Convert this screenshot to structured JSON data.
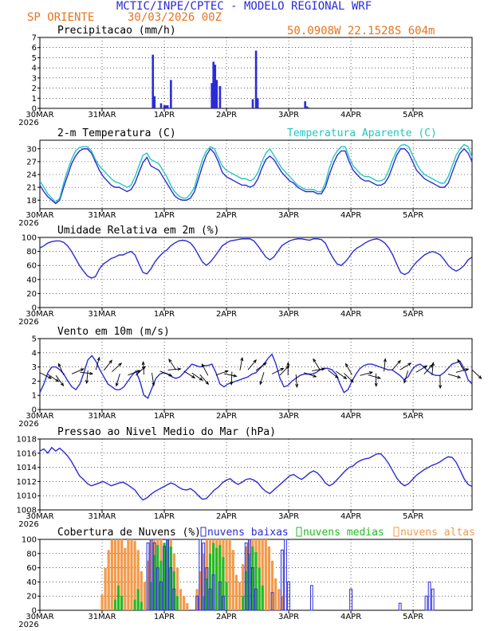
{
  "header": {
    "title": "MCTIC/INPE/CPTEC - MODELO REGIONAL WRF",
    "location": "SP ORIENTE",
    "run": "30/03/2026 00Z",
    "coords": "50.0908W 22.1528S 604m",
    "title_color": "#2b2bd6",
    "sub_color": "#e8741e"
  },
  "colors": {
    "blue": "#2b2bd6",
    "cyan": "#21c7c1",
    "green": "#22bb22",
    "orange": "#f39a4a",
    "black": "#000000"
  },
  "x_axis": {
    "labels": [
      "30MAR",
      "31MAR",
      "1APR",
      "2APR",
      "3APR",
      "4APR",
      "5APR"
    ],
    "year": "2026"
  },
  "chart_data": [
    {
      "type": "bar",
      "title": "Precipitacao (mm/h)",
      "ylim": [
        0,
        7
      ],
      "yticks": [
        0,
        1,
        2,
        3,
        4,
        5,
        6,
        7
      ],
      "bars": [
        [
          34.5,
          5.3
        ],
        [
          35,
          1.2
        ],
        [
          37,
          0.5
        ],
        [
          38,
          0.3
        ],
        [
          38.5,
          0.3
        ],
        [
          39,
          0.3
        ],
        [
          40,
          2.8
        ],
        [
          52.5,
          2.5
        ],
        [
          53,
          4.6
        ],
        [
          53.5,
          4.3
        ],
        [
          54,
          2.8
        ],
        [
          55,
          2.2
        ],
        [
          65,
          0.9
        ],
        [
          66,
          5.7
        ],
        [
          66.5,
          1.0
        ],
        [
          81,
          0.7
        ],
        [
          81.5,
          0.2
        ],
        [
          82,
          0.1
        ]
      ]
    },
    {
      "type": "line",
      "title": "2-m Temperatura (C)",
      "legend2": "Temperatura Aparente (C)",
      "ylim": [
        16,
        32
      ],
      "yticks": [
        18,
        21,
        24,
        27,
        30
      ],
      "series": [
        {
          "name": "Temperatura",
          "values": [
            21.5,
            20,
            18.8,
            18,
            17.2,
            18,
            21,
            23.8,
            26.5,
            28.3,
            29.5,
            30,
            30,
            29,
            27,
            25,
            23.5,
            22.5,
            21.5,
            21,
            21,
            20.5,
            20,
            20.5,
            22,
            24.5,
            26.8,
            28,
            26,
            25.5,
            25,
            23.5,
            22,
            20.5,
            19,
            18.3,
            18,
            18,
            18.5,
            20,
            23,
            26,
            28.5,
            30,
            29,
            27,
            24.5,
            23.5,
            23,
            22.5,
            22,
            21.5,
            21.5,
            21,
            21.5,
            23,
            25.5,
            27.5,
            28.3,
            27.5,
            26,
            24.5,
            23.5,
            22.5,
            22,
            21,
            20.5,
            20,
            20,
            20,
            19.5,
            19.5,
            21,
            24,
            26.5,
            28.5,
            29.5,
            29.5,
            27,
            25,
            24,
            23,
            22.5,
            22.5,
            22,
            21.5,
            21.5,
            22,
            23.5,
            26,
            28.5,
            30,
            30,
            29,
            27,
            25,
            24,
            23,
            22.5,
            22,
            21.5,
            21,
            21,
            22,
            24.5,
            27,
            29,
            30,
            29,
            27
          ]
        },
        {
          "name": "Temperatura Aparente",
          "values": [
            22.5,
            21,
            19.5,
            18.5,
            17.5,
            18.5,
            22,
            25,
            27.5,
            29.5,
            30.3,
            30.5,
            30.5,
            29.5,
            27.5,
            26,
            25,
            24,
            23,
            22.3,
            22,
            21.5,
            21,
            21.5,
            23.5,
            26,
            28.5,
            29,
            27.5,
            27,
            26.5,
            25,
            23.5,
            21.5,
            20,
            19,
            18.5,
            18.5,
            19.5,
            21,
            24.5,
            27.5,
            29.5,
            30.5,
            30,
            28,
            26,
            25,
            24.5,
            24,
            23.5,
            23,
            23,
            22.5,
            23,
            24.5,
            27,
            29,
            30,
            28.5,
            27,
            25.5,
            24.5,
            23.5,
            22.5,
            21.5,
            21,
            20.5,
            20.5,
            20.5,
            20,
            20,
            22,
            25.5,
            28,
            29.5,
            30.5,
            30.5,
            28,
            26,
            25,
            24,
            23.5,
            23.5,
            23,
            22.5,
            22.5,
            23,
            25,
            27.5,
            29.5,
            30.8,
            31,
            30.5,
            28.5,
            26.5,
            25,
            24,
            23.5,
            23,
            22.5,
            22,
            22,
            23.5,
            26,
            28.5,
            30,
            31,
            30.5,
            28
          ]
        }
      ]
    },
    {
      "type": "line",
      "title": "Umidade Relativa em 2m (%)",
      "ylim": [
        0,
        100
      ],
      "yticks": [
        0,
        20,
        40,
        60,
        80,
        100
      ],
      "series": [
        {
          "name": "Umidade",
          "values": [
            85,
            88,
            92,
            94,
            95,
            95,
            93,
            88,
            80,
            70,
            60,
            52,
            45,
            42,
            44,
            55,
            62,
            66,
            70,
            72,
            75,
            75,
            78,
            80,
            75,
            62,
            50,
            48,
            55,
            65,
            72,
            78,
            82,
            88,
            92,
            95,
            96,
            95,
            92,
            85,
            75,
            65,
            60,
            65,
            72,
            80,
            88,
            92,
            95,
            96,
            97,
            98,
            98,
            98,
            95,
            88,
            80,
            72,
            68,
            72,
            80,
            88,
            92,
            95,
            97,
            98,
            98,
            97,
            96,
            98,
            98,
            97,
            92,
            80,
            70,
            62,
            60,
            65,
            72,
            80,
            85,
            88,
            92,
            95,
            97,
            98,
            96,
            92,
            85,
            75,
            62,
            50,
            47,
            50,
            58,
            65,
            70,
            75,
            78,
            80,
            78,
            75,
            68,
            60,
            55,
            52,
            55,
            60,
            68,
            72
          ]
        }
      ]
    },
    {
      "type": "line",
      "title": "Vento em 10m (m/s)",
      "ylim": [
        0,
        5
      ],
      "yticks": [
        0,
        1,
        2,
        3,
        4,
        5
      ],
      "series": [
        {
          "name": "Vento",
          "values": [
            1.2,
            1.8,
            2.6,
            3,
            3,
            2.8,
            2.5,
            2,
            1.6,
            1.4,
            1.8,
            2.6,
            3.5,
            3.8,
            3.4,
            2.8,
            2.3,
            1.8,
            1.6,
            1.4,
            1.4,
            1.6,
            2,
            2.4,
            2.7,
            2,
            1,
            0.8,
            1.5,
            2.2,
            2.5,
            2.6,
            2.5,
            2.3,
            2.2,
            2.3,
            2.6,
            2.9,
            3.2,
            3.1,
            3,
            3.1,
            3.1,
            3.2,
            2.6,
            1.8,
            1.6,
            1.8,
            1.9,
            2,
            2.1,
            2.2,
            2.3,
            2.5,
            2.6,
            2.9,
            3.2,
            3.6,
            3.9,
            3.2,
            2.2,
            1.6,
            1.7,
            2,
            2.2,
            2.4,
            2.5,
            2.5,
            2.5,
            2.6,
            2.8,
            2.9,
            2.9,
            2.8,
            2.5,
            1.8,
            1.2,
            1.4,
            2,
            2.5,
            2.9,
            3.1,
            3.2,
            3.2,
            3.1,
            3,
            2.9,
            2.8,
            2.8,
            2.6,
            2.4,
            2.1,
            2.3,
            2.8,
            3.1,
            3.2,
            3,
            2.7,
            2.5,
            2.4,
            2.4,
            2.6,
            2.9,
            3.2,
            3.3,
            3.4,
            2.9,
            2.1,
            1.8
          ]
        }
      ]
    },
    {
      "type": "line",
      "title": "Pressao ao Nivel Medio do Mar (hPa)",
      "ylim": [
        1008,
        1018
      ],
      "yticks": [
        1008,
        1010,
        1012,
        1014,
        1016,
        1018
      ],
      "series": [
        {
          "name": "Pressao",
          "values": [
            1016.3,
            1016.6,
            1016.0,
            1016.8,
            1016.3,
            1016.7,
            1016.2,
            1015.6,
            1014.8,
            1013.8,
            1012.8,
            1012.3,
            1011.7,
            1011.4,
            1011.6,
            1011.8,
            1012.0,
            1011.7,
            1011.4,
            1011.6,
            1011.8,
            1011.9,
            1011.6,
            1011.2,
            1010.8,
            1010.0,
            1009.4,
            1009.7,
            1010.2,
            1010.6,
            1010.9,
            1011.2,
            1011.5,
            1011.8,
            1011.6,
            1011.2,
            1010.9,
            1010.8,
            1011.0,
            1010.6,
            1010.0,
            1009.5,
            1009.6,
            1010.2,
            1010.8,
            1011.2,
            1011.8,
            1012.2,
            1012.4,
            1011.9,
            1011.6,
            1011.9,
            1012.3,
            1012.4,
            1012.2,
            1011.8,
            1011.1,
            1010.6,
            1010.3,
            1010.8,
            1011.3,
            1011.8,
            1012.3,
            1012.8,
            1013.0,
            1012.6,
            1012.3,
            1012.7,
            1013.2,
            1013.5,
            1013.2,
            1012.6,
            1011.8,
            1011.4,
            1011.7,
            1012.3,
            1012.9,
            1013.5,
            1014.0,
            1014.2,
            1014.7,
            1015.0,
            1015.2,
            1015.3,
            1015.6,
            1015.9,
            1015.9,
            1015.3,
            1014.5,
            1013.5,
            1012.5,
            1011.8,
            1011.4,
            1011.7,
            1012.3,
            1012.9,
            1013.3,
            1013.7,
            1014.0,
            1014.3,
            1014.5,
            1014.8,
            1015.2,
            1015.5,
            1015.4,
            1014.7,
            1013.6,
            1012.4,
            1011.6,
            1011.3
          ]
        }
      ]
    },
    {
      "type": "bar",
      "title": "Cobertura de Nuvens (%)",
      "legend": [
        "nuvens baixas",
        "nuvens medias",
        "nuvens altas"
      ],
      "ylim": [
        0,
        100
      ],
      "yticks": [
        0,
        20,
        40,
        60,
        80,
        100
      ],
      "altas": [
        [
          18,
          0
        ],
        [
          19,
          22
        ],
        [
          20,
          60
        ],
        [
          21,
          85
        ],
        [
          22,
          100
        ],
        [
          23,
          100
        ],
        [
          24,
          100
        ],
        [
          25,
          100
        ],
        [
          26,
          88
        ],
        [
          27,
          100
        ],
        [
          28,
          100
        ],
        [
          29,
          98
        ],
        [
          30,
          85
        ],
        [
          31,
          55
        ],
        [
          32,
          40
        ],
        [
          33,
          70
        ],
        [
          34,
          100
        ],
        [
          35,
          100
        ],
        [
          36,
          100
        ],
        [
          37,
          100
        ],
        [
          38,
          95
        ],
        [
          39,
          100
        ],
        [
          40,
          100
        ],
        [
          41,
          80
        ],
        [
          42,
          60
        ],
        [
          43,
          30
        ],
        [
          44,
          20
        ],
        [
          45,
          10
        ],
        [
          48,
          30
        ],
        [
          49,
          55
        ],
        [
          50,
          80
        ],
        [
          51,
          100
        ],
        [
          52,
          100
        ],
        [
          53,
          100
        ],
        [
          54,
          100
        ],
        [
          55,
          100
        ],
        [
          56,
          100
        ],
        [
          57,
          100
        ],
        [
          58,
          100
        ],
        [
          59,
          85
        ],
        [
          60,
          50
        ],
        [
          61,
          40
        ],
        [
          62,
          65
        ],
        [
          63,
          90
        ],
        [
          64,
          100
        ],
        [
          65,
          100
        ],
        [
          66,
          100
        ],
        [
          67,
          100
        ],
        [
          68,
          100
        ],
        [
          69,
          100
        ],
        [
          70,
          90
        ],
        [
          71,
          70
        ],
        [
          72,
          45
        ],
        [
          73,
          30
        ],
        [
          74,
          20
        ]
      ],
      "medias": [
        [
          23,
          15
        ],
        [
          24,
          35
        ],
        [
          25,
          20
        ],
        [
          29,
          15
        ],
        [
          30,
          30
        ],
        [
          31,
          12
        ],
        [
          34,
          40
        ],
        [
          35,
          78
        ],
        [
          36,
          92
        ],
        [
          37,
          70
        ],
        [
          38,
          95
        ],
        [
          39,
          100
        ],
        [
          40,
          90
        ],
        [
          41,
          55
        ],
        [
          42,
          20
        ],
        [
          50,
          20
        ],
        [
          51,
          45
        ],
        [
          52,
          80
        ],
        [
          53,
          95
        ],
        [
          54,
          88
        ],
        [
          55,
          92
        ],
        [
          56,
          75
        ],
        [
          57,
          40
        ],
        [
          62,
          20
        ],
        [
          63,
          55
        ],
        [
          64,
          80
        ],
        [
          65,
          90
        ],
        [
          66,
          82
        ],
        [
          67,
          60
        ],
        [
          68,
          35
        ]
      ],
      "baixas": [
        [
          33,
          95
        ],
        [
          34,
          100
        ],
        [
          35,
          95
        ],
        [
          36,
          60
        ],
        [
          37,
          40
        ],
        [
          38,
          90
        ],
        [
          39,
          100
        ],
        [
          40,
          60
        ],
        [
          41,
          30
        ],
        [
          48,
          20
        ],
        [
          49,
          100
        ],
        [
          50,
          95
        ],
        [
          51,
          60
        ],
        [
          52,
          30
        ],
        [
          53,
          50
        ],
        [
          55,
          40
        ],
        [
          56,
          20
        ],
        [
          63,
          95
        ],
        [
          64,
          100
        ],
        [
          65,
          60
        ],
        [
          66,
          30
        ],
        [
          71,
          25
        ],
        [
          74,
          85
        ],
        [
          75,
          100
        ],
        [
          76,
          40
        ],
        [
          83,
          35
        ],
        [
          95,
          30
        ],
        [
          110,
          10
        ],
        [
          118,
          20
        ],
        [
          119,
          40
        ],
        [
          120,
          30
        ]
      ]
    }
  ]
}
